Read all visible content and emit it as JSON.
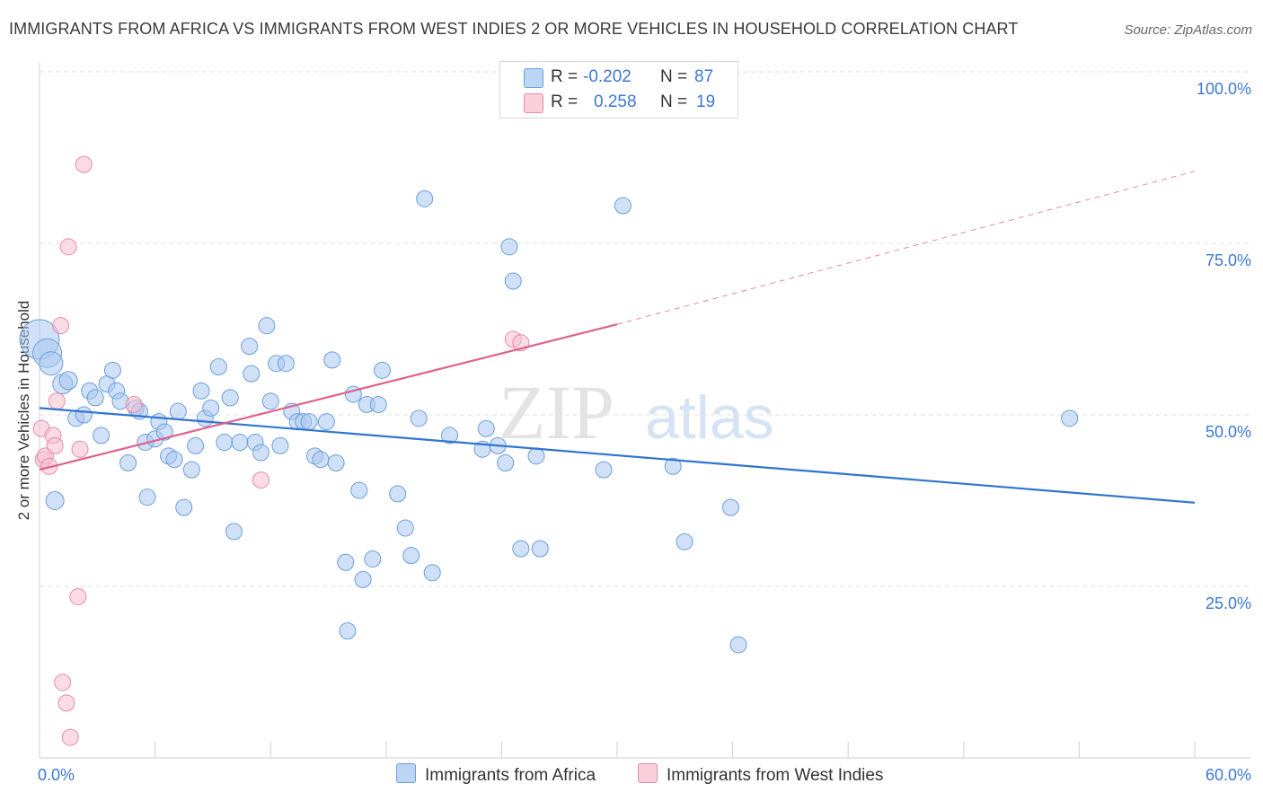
{
  "header": {
    "title": "IMMIGRANTS FROM AFRICA VS IMMIGRANTS FROM WEST INDIES 2 OR MORE VEHICLES IN HOUSEHOLD CORRELATION CHART",
    "source": "Source: ZipAtlas.com"
  },
  "colors": {
    "africa_fill": "#a9c8f0",
    "africa_stroke": "#6a9edc",
    "africa_line": "#2f74d0",
    "westindies_fill": "#f7bfcf",
    "westindies_stroke": "#e88aa6",
    "westindies_line": "#e0608a",
    "tick_label": "#3b78d4",
    "grid": "#e2e2e2",
    "watermark": "#e4e4e4"
  },
  "legend": {
    "rows": [
      {
        "r_label": "R =",
        "r_value": "-0.202",
        "n_label": "N =",
        "n_value": "87"
      },
      {
        "r_label": "R =",
        "r_value": "0.258",
        "n_label": "N =",
        "n_value": "19"
      }
    ]
  },
  "watermark": {
    "part1": "ZIP",
    "part2": "atlas"
  },
  "chart_data": {
    "type": "scatter",
    "xlabel": "",
    "ylabel": "2 or more Vehicles in Household",
    "xlim": [
      0,
      60
    ],
    "ylim": [
      0,
      100
    ],
    "x_tick_labels": [
      "0.0%",
      "60.0%"
    ],
    "y_ticks": [
      25,
      50,
      75,
      100
    ],
    "y_tick_labels": [
      "25.0%",
      "50.0%",
      "75.0%",
      "100.0%"
    ],
    "grid": true,
    "legend_position": "top-center",
    "series": [
      {
        "name": "Immigrants from Africa",
        "r": -0.202,
        "n": 87,
        "trend": {
          "x": [
            0,
            60
          ],
          "y": [
            51.0,
            37.2
          ]
        },
        "points": [
          {
            "x": 0.0,
            "y": 61.0,
            "s": 22
          },
          {
            "x": 0.4,
            "y": 59.0,
            "s": 16
          },
          {
            "x": 0.6,
            "y": 57.5,
            "s": 13
          },
          {
            "x": 1.2,
            "y": 54.5,
            "s": 11
          },
          {
            "x": 1.5,
            "y": 55.0,
            "s": 10
          },
          {
            "x": 1.9,
            "y": 49.5,
            "s": 9
          },
          {
            "x": 2.3,
            "y": 50.0,
            "s": 9
          },
          {
            "x": 2.6,
            "y": 53.5,
            "s": 9
          },
          {
            "x": 2.9,
            "y": 52.5,
            "s": 9
          },
          {
            "x": 3.2,
            "y": 47.0,
            "s": 9
          },
          {
            "x": 3.5,
            "y": 54.5,
            "s": 9
          },
          {
            "x": 3.8,
            "y": 56.5,
            "s": 9
          },
          {
            "x": 4.0,
            "y": 53.5,
            "s": 9
          },
          {
            "x": 4.2,
            "y": 52.0,
            "s": 9
          },
          {
            "x": 4.6,
            "y": 43.0,
            "s": 9
          },
          {
            "x": 5.0,
            "y": 51.0,
            "s": 9
          },
          {
            "x": 5.2,
            "y": 50.5,
            "s": 9
          },
          {
            "x": 5.5,
            "y": 46.0,
            "s": 9
          },
          {
            "x": 5.6,
            "y": 38.0,
            "s": 9
          },
          {
            "x": 6.0,
            "y": 46.5,
            "s": 9
          },
          {
            "x": 6.2,
            "y": 49.0,
            "s": 9
          },
          {
            "x": 6.5,
            "y": 47.5,
            "s": 9
          },
          {
            "x": 6.7,
            "y": 44.0,
            "s": 9
          },
          {
            "x": 7.0,
            "y": 43.5,
            "s": 9
          },
          {
            "x": 7.2,
            "y": 50.5,
            "s": 9
          },
          {
            "x": 7.5,
            "y": 36.5,
            "s": 9
          },
          {
            "x": 7.9,
            "y": 42.0,
            "s": 9
          },
          {
            "x": 8.1,
            "y": 45.5,
            "s": 9
          },
          {
            "x": 8.4,
            "y": 53.5,
            "s": 9
          },
          {
            "x": 8.6,
            "y": 49.5,
            "s": 9
          },
          {
            "x": 8.9,
            "y": 51.0,
            "s": 9
          },
          {
            "x": 9.3,
            "y": 57.0,
            "s": 9
          },
          {
            "x": 9.6,
            "y": 46.0,
            "s": 9
          },
          {
            "x": 9.9,
            "y": 52.5,
            "s": 9
          },
          {
            "x": 10.1,
            "y": 33.0,
            "s": 9
          },
          {
            "x": 10.4,
            "y": 46.0,
            "s": 9
          },
          {
            "x": 10.9,
            "y": 60.0,
            "s": 9
          },
          {
            "x": 11.0,
            "y": 56.0,
            "s": 9
          },
          {
            "x": 11.2,
            "y": 46.0,
            "s": 9
          },
          {
            "x": 11.5,
            "y": 44.5,
            "s": 9
          },
          {
            "x": 11.8,
            "y": 63.0,
            "s": 9
          },
          {
            "x": 12.0,
            "y": 52.0,
            "s": 9
          },
          {
            "x": 12.3,
            "y": 57.5,
            "s": 9
          },
          {
            "x": 12.5,
            "y": 45.5,
            "s": 9
          },
          {
            "x": 12.8,
            "y": 57.5,
            "s": 9
          },
          {
            "x": 13.1,
            "y": 50.5,
            "s": 9
          },
          {
            "x": 13.4,
            "y": 49.0,
            "s": 9
          },
          {
            "x": 13.7,
            "y": 49.0,
            "s": 9
          },
          {
            "x": 14.0,
            "y": 49.0,
            "s": 9
          },
          {
            "x": 14.3,
            "y": 44.0,
            "s": 9
          },
          {
            "x": 14.6,
            "y": 43.5,
            "s": 9
          },
          {
            "x": 14.9,
            "y": 49.0,
            "s": 9
          },
          {
            "x": 15.2,
            "y": 58.0,
            "s": 9
          },
          {
            "x": 15.4,
            "y": 43.0,
            "s": 9
          },
          {
            "x": 15.9,
            "y": 28.5,
            "s": 9
          },
          {
            "x": 16.0,
            "y": 18.5,
            "s": 9
          },
          {
            "x": 16.3,
            "y": 53.0,
            "s": 9
          },
          {
            "x": 16.6,
            "y": 39.0,
            "s": 9
          },
          {
            "x": 16.8,
            "y": 26.0,
            "s": 9
          },
          {
            "x": 17.0,
            "y": 51.5,
            "s": 9
          },
          {
            "x": 17.3,
            "y": 29.0,
            "s": 9
          },
          {
            "x": 17.6,
            "y": 51.5,
            "s": 9
          },
          {
            "x": 17.8,
            "y": 56.5,
            "s": 9
          },
          {
            "x": 18.6,
            "y": 38.5,
            "s": 9
          },
          {
            "x": 19.0,
            "y": 33.5,
            "s": 9
          },
          {
            "x": 19.3,
            "y": 29.5,
            "s": 9
          },
          {
            "x": 19.7,
            "y": 49.5,
            "s": 9
          },
          {
            "x": 20.0,
            "y": 81.5,
            "s": 9
          },
          {
            "x": 20.4,
            "y": 27.0,
            "s": 9
          },
          {
            "x": 21.3,
            "y": 47.0,
            "s": 9
          },
          {
            "x": 23.0,
            "y": 45.0,
            "s": 9
          },
          {
            "x": 23.2,
            "y": 48.0,
            "s": 9
          },
          {
            "x": 23.8,
            "y": 45.5,
            "s": 9
          },
          {
            "x": 24.2,
            "y": 43.0,
            "s": 9
          },
          {
            "x": 24.4,
            "y": 74.5,
            "s": 9
          },
          {
            "x": 24.6,
            "y": 69.5,
            "s": 9
          },
          {
            "x": 25.0,
            "y": 30.5,
            "s": 9
          },
          {
            "x": 25.8,
            "y": 44.0,
            "s": 9
          },
          {
            "x": 26.0,
            "y": 30.5,
            "s": 9
          },
          {
            "x": 29.3,
            "y": 42.0,
            "s": 9
          },
          {
            "x": 30.3,
            "y": 80.5,
            "s": 9
          },
          {
            "x": 32.9,
            "y": 42.5,
            "s": 9
          },
          {
            "x": 33.5,
            "y": 31.5,
            "s": 9
          },
          {
            "x": 35.9,
            "y": 36.5,
            "s": 9
          },
          {
            "x": 36.3,
            "y": 16.5,
            "s": 9
          },
          {
            "x": 53.5,
            "y": 49.5,
            "s": 9
          },
          {
            "x": 0.8,
            "y": 37.5,
            "s": 10
          }
        ]
      },
      {
        "name": "Immigrants from West Indies",
        "r": 0.258,
        "n": 19,
        "trend": {
          "x": [
            0,
            30
          ],
          "y": [
            42.0,
            63.2
          ]
        },
        "trend_extension": {
          "x": [
            30,
            60
          ],
          "y": [
            63.2,
            85.5
          ]
        },
        "points": [
          {
            "x": 0.1,
            "y": 48.0,
            "s": 9
          },
          {
            "x": 0.2,
            "y": 43.5,
            "s": 9
          },
          {
            "x": 0.3,
            "y": 44.0,
            "s": 9
          },
          {
            "x": 0.5,
            "y": 42.5,
            "s": 9
          },
          {
            "x": 0.7,
            "y": 47.0,
            "s": 9
          },
          {
            "x": 0.8,
            "y": 45.5,
            "s": 9
          },
          {
            "x": 0.9,
            "y": 52.0,
            "s": 9
          },
          {
            "x": 1.1,
            "y": 63.0,
            "s": 9
          },
          {
            "x": 1.2,
            "y": 11.0,
            "s": 9
          },
          {
            "x": 1.4,
            "y": 8.0,
            "s": 9
          },
          {
            "x": 1.5,
            "y": 74.5,
            "s": 9
          },
          {
            "x": 1.6,
            "y": 3.0,
            "s": 9
          },
          {
            "x": 2.0,
            "y": 23.5,
            "s": 9
          },
          {
            "x": 2.1,
            "y": 45.0,
            "s": 9
          },
          {
            "x": 2.3,
            "y": 86.5,
            "s": 9
          },
          {
            "x": 4.9,
            "y": 51.5,
            "s": 9
          },
          {
            "x": 11.5,
            "y": 40.5,
            "s": 9
          },
          {
            "x": 24.6,
            "y": 61.0,
            "s": 9
          },
          {
            "x": 25.0,
            "y": 60.5,
            "s": 9
          }
        ]
      }
    ]
  },
  "bottom_legend": {
    "items": [
      {
        "label": "Immigrants from Africa"
      },
      {
        "label": "Immigrants from West Indies"
      }
    ]
  }
}
